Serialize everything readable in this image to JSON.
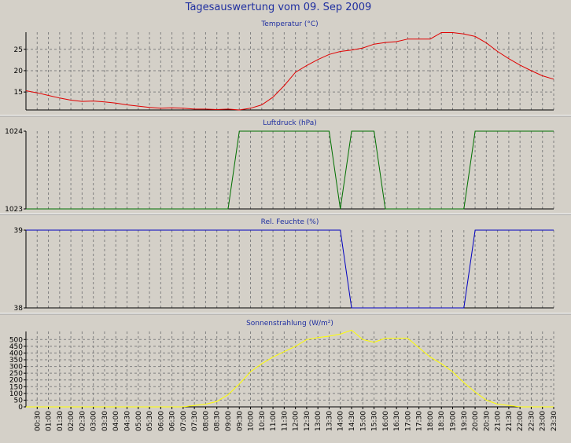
{
  "title": "Tagesauswertung vom 09. Sep 2009",
  "colors": {
    "background": "#d4d0c8",
    "title": "#1f2fa0",
    "temperature": "#e00000",
    "pressure": "#007000",
    "humidity": "#0000c0",
    "radiation": "#ffff00"
  },
  "time_labels": [
    "00:30",
    "01:00",
    "01:30",
    "02:00",
    "02:30",
    "03:00",
    "03:30",
    "04:00",
    "04:30",
    "05:00",
    "05:30",
    "06:00",
    "06:30",
    "07:00",
    "07:30",
    "08:00",
    "08:30",
    "09:00",
    "09:30",
    "10:00",
    "10:30",
    "11:00",
    "11:30",
    "12:00",
    "12:30",
    "13:00",
    "13:30",
    "14:00",
    "14:30",
    "15:00",
    "15:30",
    "16:00",
    "16:30",
    "17:00",
    "17:30",
    "18:00",
    "18:30",
    "19:00",
    "19:30",
    "20:00",
    "20:30",
    "21:00",
    "21:30",
    "22:00",
    "22:30",
    "23:00",
    "23:30"
  ],
  "chart_data": [
    {
      "type": "line",
      "title": "Temperatur (°C)",
      "ylim": [
        10.8,
        29
      ],
      "yticks": [
        15,
        20,
        25
      ],
      "grid": true,
      "x": [
        0,
        0.5,
        1,
        1.5,
        2,
        2.5,
        3,
        3.5,
        4,
        4.5,
        5,
        5.5,
        6,
        6.5,
        7,
        7.5,
        8,
        8.5,
        9,
        9.5,
        10,
        10.5,
        11,
        11.5,
        12,
        12.5,
        13,
        13.5,
        14,
        14.5,
        15,
        15.5,
        16,
        16.5,
        17,
        17.5,
        18,
        18.5,
        19,
        19.5,
        20,
        20.5,
        21,
        21.5,
        22,
        22.5,
        23,
        23.5
      ],
      "series": [
        {
          "values": [
            15.3,
            14.8,
            14.2,
            13.6,
            13.1,
            12.8,
            12.9,
            12.7,
            12.4,
            12.0,
            11.7,
            11.4,
            11.2,
            11.3,
            11.2,
            11.0,
            11.0,
            10.9,
            11.0,
            10.8,
            11.2,
            12.0,
            13.8,
            16.5,
            19.6,
            21.2,
            22.6,
            23.8,
            24.5,
            24.8,
            25.3,
            26.2,
            26.6,
            26.8,
            27.4,
            27.4,
            27.4,
            28.9,
            28.9,
            28.6,
            28.0,
            26.5,
            24.5,
            22.8,
            21.3,
            20.0,
            18.8,
            18.0
          ]
        }
      ]
    },
    {
      "type": "line",
      "title": "Luftdruck (hPa)",
      "ylim": [
        1023,
        1024
      ],
      "yticks": [
        1023,
        1024
      ],
      "grid": true,
      "x": [
        0,
        0.5,
        1,
        1.5,
        2,
        2.5,
        3,
        3.5,
        4,
        4.5,
        5,
        5.5,
        6,
        6.5,
        7,
        7.5,
        8,
        8.5,
        9,
        9.5,
        10,
        10.5,
        11,
        11.5,
        12,
        12.5,
        13,
        13.5,
        14,
        14.5,
        15,
        15.5,
        16,
        16.5,
        17,
        17.5,
        18,
        18.5,
        19,
        19.5,
        20,
        20.5,
        21,
        21.5,
        22,
        22.5,
        23,
        23.5
      ],
      "series": [
        {
          "values": [
            1023,
            1023,
            1023,
            1023,
            1023,
            1023,
            1023,
            1023,
            1023,
            1023,
            1023,
            1023,
            1023,
            1023,
            1023,
            1023,
            1023,
            1023,
            1023,
            1024,
            1024,
            1024,
            1024,
            1024,
            1024,
            1024,
            1024,
            1024,
            1023,
            1024,
            1024,
            1024,
            1023,
            1023,
            1023,
            1023,
            1023,
            1023,
            1023,
            1023,
            1024,
            1024,
            1024,
            1024,
            1024,
            1024,
            1024,
            1024
          ]
        }
      ]
    },
    {
      "type": "line",
      "title": "Rel. Feuchte (%)",
      "ylim": [
        38,
        39
      ],
      "yticks": [
        38,
        39
      ],
      "grid": true,
      "x": [
        0,
        0.5,
        1,
        1.5,
        2,
        2.5,
        3,
        3.5,
        4,
        4.5,
        5,
        5.5,
        6,
        6.5,
        7,
        7.5,
        8,
        8.5,
        9,
        9.5,
        10,
        10.5,
        11,
        11.5,
        12,
        12.5,
        13,
        13.5,
        14,
        14.5,
        15,
        15.5,
        16,
        16.5,
        17,
        17.5,
        18,
        18.5,
        19,
        19.5,
        20,
        20.5,
        21,
        21.5,
        22,
        22.5,
        23,
        23.5
      ],
      "series": [
        {
          "values": [
            39,
            39,
            39,
            39,
            39,
            39,
            39,
            39,
            39,
            39,
            39,
            39,
            39,
            39,
            39,
            39,
            39,
            39,
            39,
            39,
            39,
            39,
            39,
            39,
            39,
            39,
            39,
            39,
            39,
            38,
            38,
            38,
            38,
            38,
            38,
            38,
            38,
            38,
            38,
            38,
            39,
            39,
            39,
            39,
            39,
            39,
            39,
            39
          ]
        }
      ]
    },
    {
      "type": "line",
      "title": "Sonnenstrahlung (W/m²)",
      "ylim": [
        0,
        560
      ],
      "yticks": [
        0,
        50,
        100,
        150,
        200,
        250,
        300,
        350,
        400,
        450,
        500
      ],
      "grid": true,
      "x": [
        0,
        0.5,
        1,
        1.5,
        2,
        2.5,
        3,
        3.5,
        4,
        4.5,
        5,
        5.5,
        6,
        6.5,
        7,
        7.5,
        8,
        8.5,
        9,
        9.5,
        10,
        10.5,
        11,
        11.5,
        12,
        12.5,
        13,
        13.5,
        14,
        14.5,
        15,
        15.5,
        16,
        16.5,
        17,
        17.5,
        18,
        18.5,
        19,
        19.5,
        20,
        20.5,
        21,
        21.5,
        22,
        22.5,
        23,
        23.5
      ],
      "series": [
        {
          "values": [
            0,
            0,
            0,
            0,
            0,
            0,
            0,
            0,
            0,
            0,
            0,
            0,
            0,
            0,
            0,
            10,
            20,
            40,
            90,
            170,
            260,
            320,
            370,
            410,
            450,
            500,
            515,
            525,
            540,
            570,
            500,
            480,
            510,
            510,
            510,
            440,
            370,
            320,
            260,
            180,
            110,
            50,
            20,
            10,
            0,
            0,
            0,
            0
          ]
        }
      ]
    }
  ]
}
